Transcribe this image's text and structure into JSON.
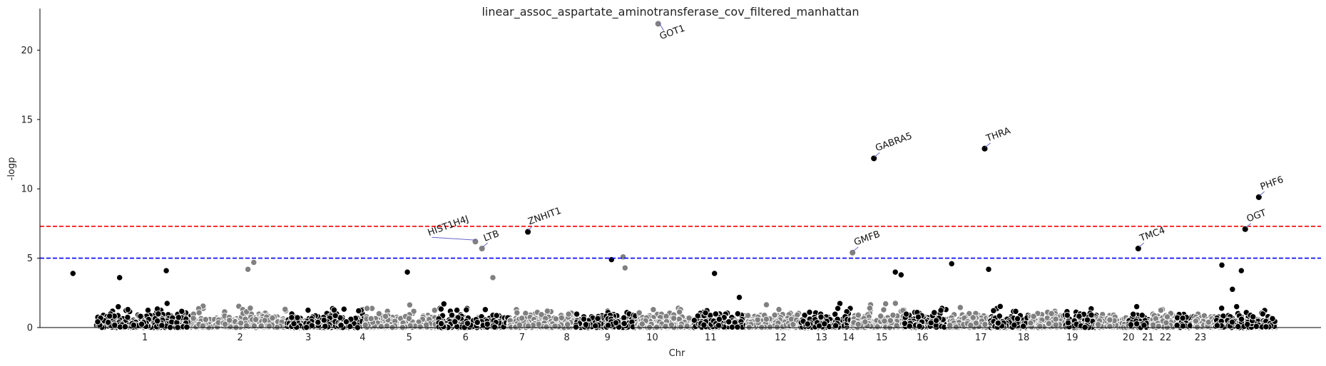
{
  "chart_data": {
    "type": "scatter",
    "title": "linear_assoc_aspartate_aminotransferase_cov_filtered_manhattan",
    "xlabel": "Chr",
    "ylabel": "-logp",
    "ylim": [
      0,
      23
    ],
    "yticks": [
      0,
      5,
      10,
      15,
      20
    ],
    "grid": false,
    "colors": {
      "dark": "#000000",
      "light": "#808080",
      "red_line": "#ff0000",
      "blue_line": "#0000ff",
      "arrow": "#6666cc"
    },
    "thresholds": [
      {
        "name": "genome-wide",
        "value": 7.3,
        "color": "#ff0000",
        "style": "dashed"
      },
      {
        "name": "suggestive",
        "value": 5.0,
        "color": "#0000ff",
        "style": "dashed"
      }
    ],
    "chromosomes": [
      {
        "label": "1",
        "start": 0,
        "end": 2.49,
        "tone": "dark",
        "peak": 4.1
      },
      {
        "label": "2",
        "start": 2.49,
        "end": 4.91,
        "tone": "light",
        "peak": 4.7
      },
      {
        "label": "3",
        "start": 4.91,
        "end": 6.9,
        "tone": "dark",
        "peak": 3.4
      },
      {
        "label": "4",
        "start": 6.9,
        "end": 8.8,
        "tone": "light",
        "peak": 2.8
      },
      {
        "label": "5",
        "start": 8.8,
        "end": 10.62,
        "tone": "dark",
        "peak": 4.0
      },
      {
        "label": "6",
        "start": 10.62,
        "end": 12.33,
        "tone": "light",
        "peak": 3.6
      },
      {
        "label": "7",
        "start": 12.33,
        "end": 13.92,
        "tone": "dark",
        "peak": 3.1
      },
      {
        "label": "8",
        "start": 13.92,
        "end": 15.38,
        "tone": "light",
        "peak": 2.9
      },
      {
        "label": "9",
        "start": 15.38,
        "end": 16.76,
        "tone": "dark",
        "peak": 3.3
      },
      {
        "label": "10",
        "start": 16.76,
        "end": 18.1,
        "tone": "light",
        "peak": 5.1
      },
      {
        "label": "11",
        "start": 18.1,
        "end": 19.45,
        "tone": "dark",
        "peak": 3.9
      },
      {
        "label": "12",
        "start": 19.45,
        "end": 20.78,
        "tone": "light",
        "peak": 3.4
      },
      {
        "label": "13",
        "start": 20.78,
        "end": 21.93,
        "tone": "dark",
        "peak": 2.5
      },
      {
        "label": "14",
        "start": 21.93,
        "end": 23.0,
        "tone": "light",
        "peak": 2.8
      },
      {
        "label": "15",
        "start": 23.0,
        "end": 24.02,
        "tone": "dark",
        "peak": 4.0
      },
      {
        "label": "16",
        "start": 24.02,
        "end": 24.92,
        "tone": "light",
        "peak": 3.4
      },
      {
        "label": "17",
        "start": 24.92,
        "end": 25.75,
        "tone": "dark",
        "peak": 4.6
      },
      {
        "label": "18",
        "start": 25.75,
        "end": 26.55,
        "tone": "light",
        "peak": 2.8
      },
      {
        "label": "19",
        "start": 26.55,
        "end": 27.14,
        "tone": "dark",
        "peak": 3.0
      },
      {
        "label": "20",
        "start": 27.14,
        "end": 27.78,
        "tone": "light",
        "peak": 2.9
      },
      {
        "label": "21",
        "start": 27.78,
        "end": 28.25,
        "tone": "dark",
        "peak": 3.0
      },
      {
        "label": "22",
        "start": 28.25,
        "end": 28.76,
        "tone": "light",
        "peak": 3.3
      },
      {
        "label": "23",
        "start": 28.76,
        "end": 30.32,
        "tone": "dark",
        "peak": 4.5
      }
    ],
    "tick_labels": [
      {
        "label": "1",
        "pos": 1.25
      },
      {
        "label": "2",
        "pos": 3.7
      },
      {
        "label": "3",
        "pos": 5.45
      },
      {
        "label": "4",
        "pos": 6.85
      },
      {
        "label": "5",
        "pos": 8.05
      },
      {
        "label": "6",
        "pos": 9.5
      },
      {
        "label": "7",
        "pos": 10.95
      },
      {
        "label": "8",
        "pos": 12.1
      },
      {
        "label": "9",
        "pos": 13.15
      },
      {
        "label": "10",
        "pos": 14.3
      },
      {
        "label": "11",
        "pos": 15.8
      },
      {
        "label": "12",
        "pos": 17.6
      },
      {
        "label": "13",
        "pos": 18.65
      },
      {
        "label": "14",
        "pos": 19.35
      },
      {
        "label": "15",
        "pos": 20.2
      },
      {
        "label": "16",
        "pos": 21.25
      },
      {
        "label": "17",
        "pos": 22.75
      },
      {
        "label": "18",
        "pos": 23.85
      },
      {
        "label": "19",
        "pos": 25.1
      },
      {
        "label": "20",
        "pos": 26.55
      },
      {
        "label": "21",
        "pos": 27.05
      },
      {
        "label": "22",
        "pos": 27.5
      },
      {
        "label": "23",
        "pos": 28.4
      }
    ],
    "xlim": [
      -1.45,
      31.5
    ],
    "highlights": [
      {
        "gene": "GOT1",
        "x": 14.45,
        "y": 21.9,
        "tone": "light"
      },
      {
        "gene": "GABRA5",
        "x": 20.0,
        "y": 12.2,
        "tone": "dark"
      },
      {
        "gene": "THRA",
        "x": 22.85,
        "y": 12.9,
        "tone": "dark"
      },
      {
        "gene": "PHF6",
        "x": 29.9,
        "y": 9.4,
        "tone": "dark"
      },
      {
        "gene": "OGT",
        "x": 29.55,
        "y": 7.1,
        "tone": "dark"
      },
      {
        "gene": "ZNHIT1",
        "x": 11.1,
        "y": 6.9,
        "tone": "dark"
      },
      {
        "gene": "HIST1H4J",
        "x": 9.75,
        "y": 6.2,
        "tone": "light"
      },
      {
        "gene": "LTB",
        "x": 9.92,
        "y": 5.7,
        "tone": "light"
      },
      {
        "gene": "GMFB",
        "x": 19.45,
        "y": 5.4,
        "tone": "light"
      },
      {
        "gene": "TMC4",
        "x": 26.8,
        "y": 5.7,
        "tone": "dark"
      }
    ],
    "extra_points": [
      {
        "x": 13.25,
        "y": 4.9,
        "tone": "dark"
      },
      {
        "x": 13.55,
        "y": 5.1,
        "tone": "light"
      },
      {
        "x": 13.6,
        "y": 4.3,
        "tone": "light"
      },
      {
        "x": 1.8,
        "y": 4.1,
        "tone": "dark"
      },
      {
        "x": 4.05,
        "y": 4.7,
        "tone": "light"
      },
      {
        "x": 3.9,
        "y": 4.2,
        "tone": "light"
      },
      {
        "x": 8.0,
        "y": 4.0,
        "tone": "dark"
      },
      {
        "x": 10.2,
        "y": 3.6,
        "tone": "light"
      },
      {
        "x": 15.9,
        "y": 3.9,
        "tone": "dark"
      },
      {
        "x": 20.55,
        "y": 4.0,
        "tone": "dark"
      },
      {
        "x": 20.7,
        "y": 3.8,
        "tone": "dark"
      },
      {
        "x": 22.0,
        "y": 4.6,
        "tone": "dark"
      },
      {
        "x": 22.95,
        "y": 4.2,
        "tone": "dark"
      },
      {
        "x": 28.95,
        "y": 4.5,
        "tone": "dark"
      },
      {
        "x": 29.45,
        "y": 4.1,
        "tone": "dark"
      },
      {
        "x": -0.6,
        "y": 3.9,
        "tone": "dark"
      },
      {
        "x": 0.6,
        "y": 3.6,
        "tone": "dark"
      }
    ]
  }
}
